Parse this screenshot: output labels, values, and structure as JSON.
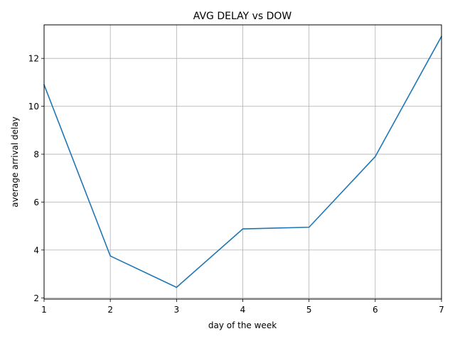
{
  "chart_data": {
    "type": "line",
    "title": "AVG DELAY vs DOW",
    "xlabel": "day of the week",
    "ylabel": "average arrival delay",
    "x": [
      1,
      2,
      3,
      4,
      5,
      6,
      7
    ],
    "series": [
      {
        "values": [
          10.9,
          3.75,
          2.44,
          4.88,
          4.95,
          7.9,
          12.92
        ],
        "color": "#1f77b4"
      }
    ],
    "xlim": [
      1,
      7
    ],
    "ylim": [
      1.95,
      13.4
    ],
    "xticks": [
      1,
      2,
      3,
      4,
      5,
      6,
      7
    ],
    "yticks": [
      2,
      4,
      6,
      8,
      10,
      12
    ],
    "grid": true
  }
}
